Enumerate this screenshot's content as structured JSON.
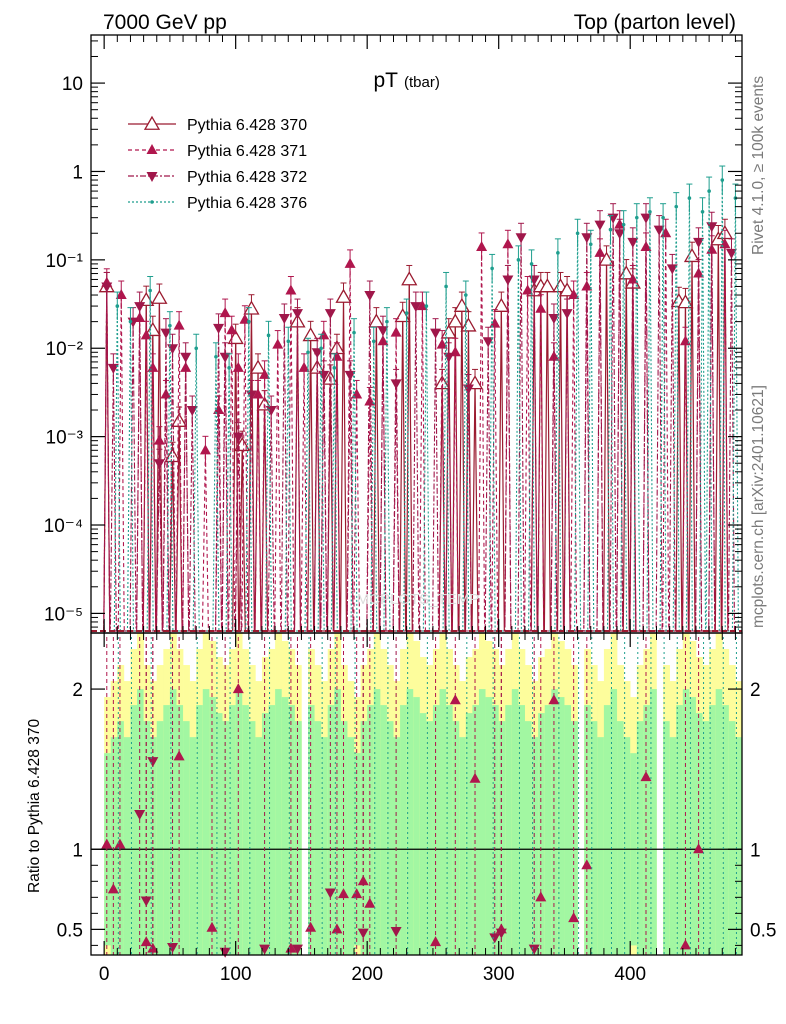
{
  "header": {
    "left": "7000 GeV pp",
    "right": "Top (parton level)"
  },
  "side_labels": {
    "rivet": "Rivet 4.1.0, ≥ 100k events",
    "mcplots": "mcplots.cern.ch [arXiv:2401.10621]"
  },
  "watermark": "MCPLOTS_TEMP",
  "colors": {
    "series_370": "#9b1b30",
    "series_371": "#b0164d",
    "series_372": "#a0174a",
    "series_376": "#1e9e8e",
    "band_green": "#a2f7a2",
    "band_yellow": "#fdfd9c"
  },
  "chart_data": {
    "type": "line",
    "title": "pT",
    "title_sub": "(tbar)",
    "xlabel": "",
    "ylabel_ratio": "Ratio to Pythia 6.428 370",
    "xlim": [
      -10,
      485
    ],
    "ylim_main": [
      6e-06,
      35
    ],
    "ylim_ratio": [
      0.34,
      2.35
    ],
    "y_scale_main": "log",
    "x_ticks": [
      0,
      100,
      200,
      300,
      400
    ],
    "x_tick_labels": [
      "0",
      "100",
      "200",
      "300",
      "400"
    ],
    "y_ticks_main": [
      1e-05,
      0.0001,
      0.001,
      0.01,
      0.1,
      1,
      10
    ],
    "y_tick_labels_main": [
      "10⁻⁵",
      "10⁻⁴",
      "10⁻³",
      "10⁻²",
      "10⁻¹",
      "1",
      "10"
    ],
    "y_ticks_ratio": [
      0.5,
      1,
      2
    ],
    "y_tick_labels_ratio": [
      "0.5",
      "1",
      "2"
    ],
    "legend_position": "top-left",
    "series": [
      {
        "name": "Pythia 6.428 370",
        "marker": "open-triangle-up",
        "line": "solid",
        "x": [
          2,
          32,
          37,
          42,
          52,
          57,
          100,
          105,
          112,
          117,
          122,
          147,
          157,
          162,
          172,
          177,
          182,
          207,
          227,
          232,
          257,
          262,
          267,
          272,
          277,
          282,
          302,
          327,
          332,
          337,
          347,
          352,
          382,
          397,
          402,
          437,
          442,
          447,
          467,
          472
        ],
        "values": [
          0.05,
          0.035,
          0.016,
          0.037,
          0.0006,
          0.0015,
          0.013,
          0.0008,
          0.028,
          0.006,
          0.0023,
          0.02,
          0.014,
          0.006,
          0.0045,
          0.01,
          0.038,
          0.02,
          0.023,
          0.06,
          0.004,
          0.015,
          0.02,
          0.03,
          0.018,
          0.004,
          0.03,
          0.045,
          0.05,
          0.05,
          0.05,
          0.045,
          0.1,
          0.07,
          0.055,
          0.034,
          0.033,
          0.11,
          0.17,
          0.2
        ]
      },
      {
        "name": "Pythia 6.428 371",
        "marker": "filled-triangle-up",
        "line": "dashed",
        "x": [
          2,
          13,
          27,
          32,
          37,
          42,
          47,
          57,
          62,
          77,
          87,
          92,
          97,
          102,
          107,
          117,
          122,
          132,
          142,
          152,
          167,
          177,
          187,
          192,
          202,
          212,
          222,
          242,
          257,
          267,
          287,
          297,
          307,
          322,
          332,
          342,
          357,
          367,
          377,
          392,
          402,
          412,
          427,
          442,
          452,
          462,
          472
        ],
        "values": [
          0.055,
          0.04,
          0.022,
          0.014,
          0.006,
          0.0009,
          0.003,
          0.018,
          0.006,
          0.0007,
          0.002,
          0.025,
          0.016,
          0.006,
          0.021,
          0.003,
          0.005,
          0.011,
          0.045,
          0.006,
          0.014,
          0.008,
          0.09,
          0.003,
          0.0025,
          0.012,
          0.015,
          0.03,
          0.011,
          0.009,
          0.14,
          0.019,
          0.15,
          0.045,
          0.028,
          0.008,
          0.04,
          0.05,
          0.12,
          0.25,
          0.06,
          0.14,
          0.2,
          0.012,
          0.07,
          0.13,
          0.15
        ]
      },
      {
        "name": "Pythia 6.428 372",
        "marker": "filled-triangle-down",
        "line": "dash-dot",
        "x": [
          2,
          7,
          22,
          27,
          42,
          47,
          52,
          62,
          67,
          87,
          92,
          102,
          112,
          127,
          137,
          147,
          162,
          167,
          172,
          187,
          202,
          212,
          222,
          237,
          252,
          262,
          277,
          292,
          307,
          317,
          327,
          342,
          352,
          367,
          377,
          387,
          392,
          402,
          412,
          422,
          432,
          452,
          462,
          477
        ],
        "values": [
          0.05,
          0.006,
          0.02,
          0.03,
          0.0005,
          0.015,
          0.01,
          0.008,
          0.002,
          0.017,
          0.008,
          0.001,
          0.003,
          0.002,
          0.022,
          0.025,
          0.009,
          0.005,
          0.025,
          0.005,
          0.04,
          0.016,
          0.004,
          0.03,
          0.015,
          0.008,
          0.0035,
          0.012,
          0.06,
          0.18,
          0.06,
          0.022,
          0.025,
          0.18,
          0.25,
          0.3,
          0.2,
          0.16,
          0.3,
          0.22,
          0.08,
          0.16,
          0.24,
          0.12
        ]
      },
      {
        "name": "Pythia 6.428 376",
        "marker": "small-dot",
        "line": "dash-dot-dense",
        "x": [
          10,
          20,
          35,
          50,
          70,
          85,
          95,
          110,
          125,
          140,
          155,
          165,
          175,
          190,
          205,
          215,
          230,
          245,
          260,
          275,
          295,
          315,
          325,
          345,
          360,
          370,
          385,
          395,
          405,
          415,
          425,
          435,
          445,
          455,
          460,
          470,
          480
        ],
        "values": [
          0.03,
          0.02,
          0.045,
          0.018,
          0.01,
          0.008,
          0.006,
          0.02,
          0.014,
          0.012,
          0.009,
          0.01,
          0.006,
          0.015,
          0.012,
          0.02,
          0.025,
          0.03,
          0.05,
          0.04,
          0.08,
          0.1,
          0.09,
          0.12,
          0.2,
          0.15,
          0.22,
          0.25,
          0.3,
          0.35,
          0.3,
          0.4,
          0.5,
          0.35,
          0.6,
          0.8,
          0.5
        ]
      }
    ],
    "ratio_points": [
      {
        "series": "Pythia 6.428 371",
        "x": [
          2,
          7,
          12,
          32,
          37,
          57,
          82,
          102,
          142,
          157,
          177,
          182,
          192,
          197,
          202,
          252,
          267,
          282,
          302,
          332,
          342,
          357,
          367,
          412,
          442,
          452
        ],
        "values": [
          1.03,
          0.75,
          1.03,
          0.42,
          0.38,
          1.58,
          0.51,
          2.0,
          0.38,
          0.51,
          0.5,
          0.72,
          0.72,
          0.8,
          0.66,
          0.42,
          1.93,
          1.44,
          0.5,
          0.7,
          1.93,
          0.57,
          0.9,
          1.45,
          0.4,
          1.0
        ]
      },
      {
        "series": "Pythia 6.428 372",
        "x": [
          27,
          32,
          37,
          52,
          92,
          122,
          147,
          172,
          197,
          222,
          297,
          302,
          327
        ],
        "values": [
          1.22,
          0.68,
          1.55,
          0.39,
          0.36,
          0.38,
          0.38,
          0.73,
          0.48,
          0.49,
          0.45,
          0.48,
          0.38
        ]
      }
    ],
    "ratio_bands": {
      "x_step": 5,
      "green_half_width": [
        0.6,
        0.7,
        0.8,
        0.7,
        0.9,
        1.0,
        0.8,
        0.7,
        0.8,
        0.9,
        1.0,
        0.9,
        0.8,
        0.7,
        0.9,
        1.0,
        0.95,
        0.85,
        0.8,
        0.9,
        1.0,
        0.9,
        0.8,
        0.7,
        0.85,
        0.9,
        1.0,
        0.95,
        0.9,
        0.8,
        0.0,
        0.9,
        0.8,
        0.7,
        0.9,
        1.0,
        0.8,
        0.7,
        0.6,
        0.8,
        0.9,
        1.0,
        0.9,
        0.8,
        0.7,
        0.9,
        1.0,
        0.95,
        0.85,
        0.8,
        0.9,
        1.0,
        0.9,
        0.8,
        0.7,
        0.85,
        0.9,
        1.0,
        0.95,
        0.9,
        0.8,
        0.9,
        1.0,
        0.9,
        0.8,
        0.7,
        0.85,
        0.9,
        1.0,
        0.95,
        0.9,
        0.8,
        0.0,
        0.9,
        0.8,
        0.7,
        0.9,
        1.0,
        0.8,
        0.7,
        0.6,
        0.8,
        0.9,
        1.0,
        0.0,
        0.8,
        0.7,
        0.9,
        1.0,
        0.95,
        0.85,
        0.8,
        0.9,
        1.0,
        0.9,
        0.8,
        0.7
      ]
    }
  }
}
